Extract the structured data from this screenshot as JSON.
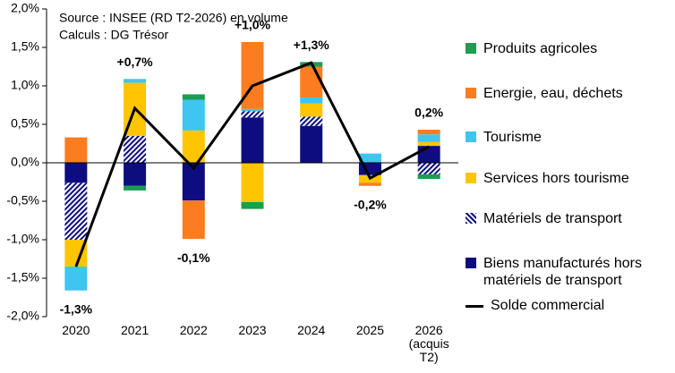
{
  "chart_data": {
    "type": "bar",
    "source": "Source : INSEE (RD T2-2026) en volume",
    "credit": "Calculs : DG Trésor",
    "stacked": true,
    "categories": [
      "2020",
      "2021",
      "2022",
      "2023",
      "2024",
      "2025",
      "2026 (acquis T2)"
    ],
    "series": [
      {
        "name": "Produits agricoles",
        "color": "#1a9e4f",
        "values": [
          0,
          -0.06,
          0.07,
          -0.09,
          0.06,
          0,
          -0.06
        ]
      },
      {
        "name": "Energie, eau, déchets",
        "color": "#fb7d1f",
        "values": [
          0.33,
          0,
          -0.5,
          0.87,
          0.4,
          -0.04,
          0.06
        ]
      },
      {
        "name": "Tourisme",
        "color": "#3ec5f0",
        "values": [
          -0.31,
          0.05,
          0.4,
          0.03,
          0.08,
          0.12,
          0.1
        ]
      },
      {
        "name": "Services hors tourisme",
        "color": "#ffc600",
        "values": [
          -0.35,
          0.69,
          0.42,
          -0.51,
          0.17,
          -0.1,
          0.05
        ]
      },
      {
        "name": "Matériels de transport",
        "color": "#0d0d80",
        "hatch": true,
        "values": [
          -0.74,
          0.35,
          0,
          0.08,
          0.12,
          0,
          -0.15
        ]
      },
      {
        "name": "Biens manufacturés hors matériels de transport",
        "color": "#0d0d80",
        "values": [
          -0.26,
          -0.3,
          -0.49,
          0.59,
          0.48,
          -0.16,
          0.22
        ]
      }
    ],
    "line": {
      "name": "Solde commercial",
      "color": "#000000",
      "values": [
        -1.35,
        0.71,
        -0.07,
        1.0,
        1.3,
        -0.2,
        0.21
      ],
      "value_labels": [
        "-1,3%",
        "+0,7%",
        "-0,1%",
        "+1,0%",
        "+1,3%",
        "-0,2%",
        "0,2%"
      ]
    },
    "ylim": [
      -2.0,
      2.0
    ],
    "yticks": [
      {
        "value": -2.0,
        "label": "-2,0%"
      },
      {
        "value": -1.5,
        "label": "-1,5%"
      },
      {
        "value": -1.0,
        "label": "-1,0%"
      },
      {
        "value": -0.5,
        "label": "-0,5%"
      },
      {
        "value": 0,
        "label": "0,0%"
      },
      {
        "value": 0.5,
        "label": "0,5%"
      },
      {
        "value": 1.0,
        "label": "1,0%"
      },
      {
        "value": 1.5,
        "label": "1,5%"
      },
      {
        "value": 2.0,
        "label": "2,0%"
      }
    ],
    "grid": false
  }
}
